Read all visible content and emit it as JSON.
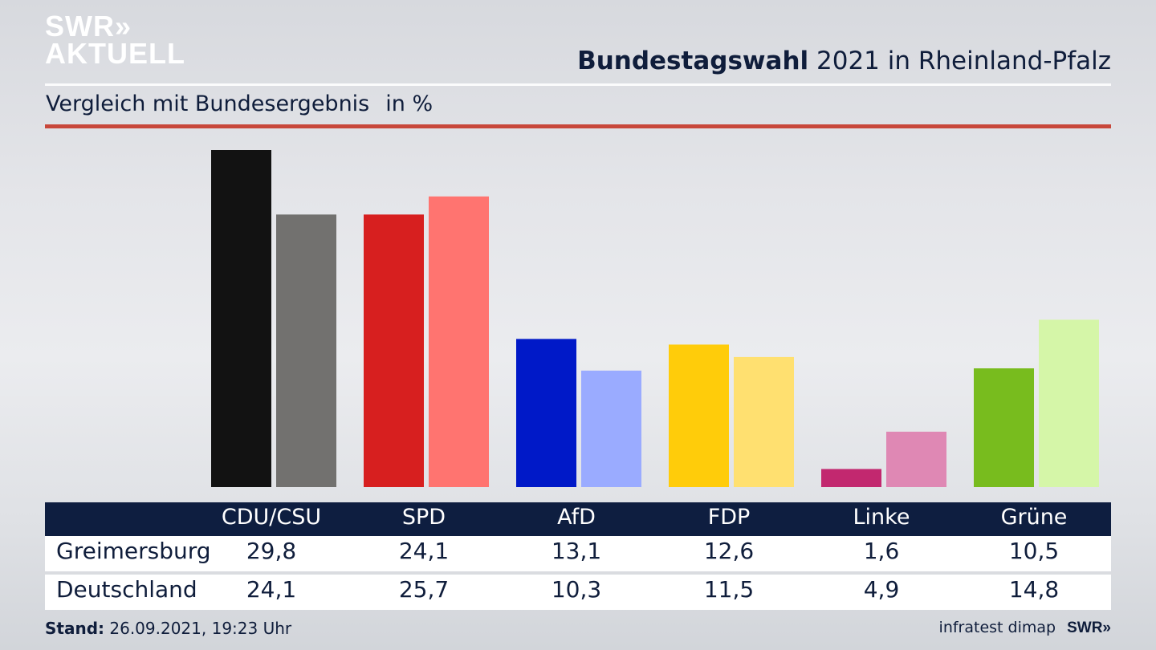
{
  "header": {
    "logo_line1": "SWR»",
    "logo_line2": "AKTUELL",
    "title_bold": "Bundestagswahl",
    "title_rest": " 2021 in Rheinland-Pfalz",
    "subtitle": "Vergleich mit Bundesergebnis",
    "unit": "in %"
  },
  "table": {
    "headers": [
      "CDU/CSU",
      "SPD",
      "AfD",
      "FDP",
      "Linke",
      "Grüne"
    ],
    "rows": [
      {
        "label": "Greimersburg",
        "values": [
          "29,8",
          "24,1",
          "13,1",
          "12,6",
          "1,6",
          "10,5"
        ]
      },
      {
        "label": "Deutschland",
        "values": [
          "24,1",
          "25,7",
          "10,3",
          "11,5",
          "4,9",
          "14,8"
        ]
      }
    ]
  },
  "footer": {
    "stand_label": "Stand:",
    "stand_value": " 26.09.2021, 19:23 Uhr",
    "source": "infratest dimap",
    "brand": "SWR»"
  },
  "chart_data": {
    "type": "bar",
    "title": "Bundestagswahl 2021 in Rheinland-Pfalz",
    "subtitle": "Vergleich mit Bundesergebnis in %",
    "categories": [
      "CDU/CSU",
      "SPD",
      "AfD",
      "FDP",
      "Linke",
      "Grüne"
    ],
    "series": [
      {
        "name": "Greimersburg",
        "values": [
          29.8,
          24.1,
          13.1,
          12.6,
          1.6,
          10.5
        ],
        "colors": [
          "#121212",
          "#d71f1f",
          "#0019c8",
          "#ffcc0a",
          "#c2286f",
          "#78bc1e"
        ]
      },
      {
        "name": "Deutschland",
        "values": [
          24.1,
          25.7,
          10.3,
          11.5,
          4.9,
          14.8
        ],
        "colors": [
          "#72716f",
          "#ff7470",
          "#9aabff",
          "#ffe070",
          "#df88b4",
          "#d5f6a8"
        ]
      }
    ],
    "ylim": [
      0,
      29.8
    ],
    "xlabel": "",
    "ylabel": "",
    "grid": false,
    "legend": "table-below"
  }
}
